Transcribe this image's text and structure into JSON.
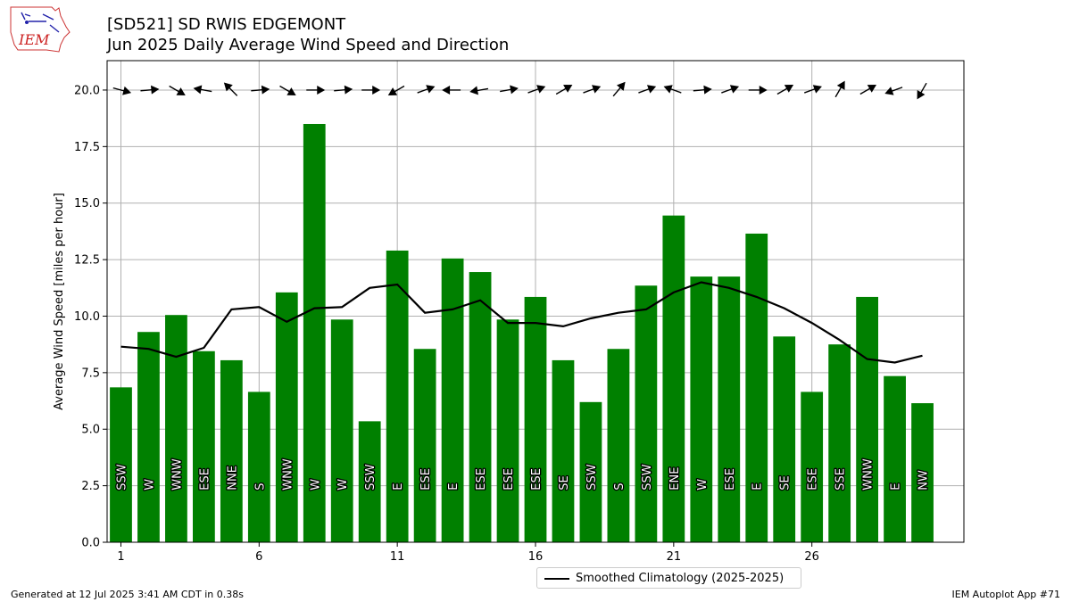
{
  "header": {
    "title_line1": "[SD521] SD RWIS EDGEMONT",
    "title_line2": "Jun 2025 Daily Average Wind Speed and Direction",
    "logo_text": "IEM"
  },
  "footer": {
    "generated": "Generated at 12 Jul 2025 3:41 AM CDT in 0.38s",
    "app": "IEM Autoplot App #71"
  },
  "legend": {
    "label": "Smoothed Climatology (2025-2025)"
  },
  "colors": {
    "bar": "#008000",
    "line": "#000000",
    "grid": "#b0b0b0"
  },
  "chart_data": {
    "type": "bar",
    "title": "[SD521] SD RWIS EDGEMONT",
    "subtitle": "Jun 2025 Daily Average Wind Speed and Direction",
    "ylabel": "Average Wind Speed [miles per hour]",
    "xlabel": "",
    "ylim": [
      0,
      21.3
    ],
    "xlim": [
      0.5,
      31.5
    ],
    "yticks": [
      0.0,
      2.5,
      5.0,
      7.5,
      10.0,
      12.5,
      15.0,
      17.5,
      20.0
    ],
    "xticks": [
      1,
      6,
      11,
      16,
      21,
      26
    ],
    "grid": true,
    "legend_position": "bottom-center",
    "x": [
      1,
      2,
      3,
      4,
      5,
      6,
      7,
      8,
      9,
      10,
      11,
      12,
      13,
      14,
      15,
      16,
      17,
      18,
      19,
      20,
      21,
      22,
      23,
      24,
      25,
      26,
      27,
      28,
      29,
      30
    ],
    "series": [
      {
        "name": "",
        "type": "bar",
        "values": [
          6.85,
          9.3,
          10.05,
          8.45,
          8.05,
          6.65,
          11.05,
          18.5,
          9.85,
          5.35,
          12.9,
          8.55,
          12.55,
          11.95,
          9.85,
          10.85,
          8.05,
          6.2,
          8.55,
          11.35,
          14.45,
          11.75,
          11.75,
          13.65,
          9.1,
          6.65,
          8.75,
          10.85,
          7.35,
          6.15
        ],
        "direction_labels": [
          "SSW",
          "W",
          "WNW",
          "ESE",
          "NNE",
          "S",
          "WNW",
          "W",
          "W",
          "SSW",
          "E",
          "ESE",
          "E",
          "ESE",
          "ESE",
          "ESE",
          "SE",
          "SSW",
          "S",
          "SSW",
          "ENE",
          "W",
          "ESE",
          "E",
          "SE",
          "ESE",
          "SSE",
          "WNW",
          "E",
          "NW"
        ]
      },
      {
        "name": "Smoothed Climatology (2025-2025)",
        "type": "line",
        "values": [
          8.65,
          8.55,
          8.2,
          8.6,
          10.3,
          10.4,
          9.75,
          10.35,
          10.4,
          11.25,
          11.4,
          10.15,
          10.3,
          10.7,
          9.7,
          9.7,
          9.55,
          9.9,
          10.15,
          10.3,
          11.05,
          11.5,
          11.25,
          10.85,
          10.35,
          9.7,
          8.95,
          8.1,
          7.95,
          8.25
        ]
      }
    ],
    "wind_arrow_angles_deg": [
      15,
      355,
      30,
      190,
      225,
      355,
      30,
      0,
      355,
      0,
      150,
      340,
      180,
      170,
      350,
      340,
      330,
      340,
      310,
      340,
      200,
      355,
      340,
      0,
      330,
      340,
      300,
      330,
      160,
      120
    ]
  }
}
